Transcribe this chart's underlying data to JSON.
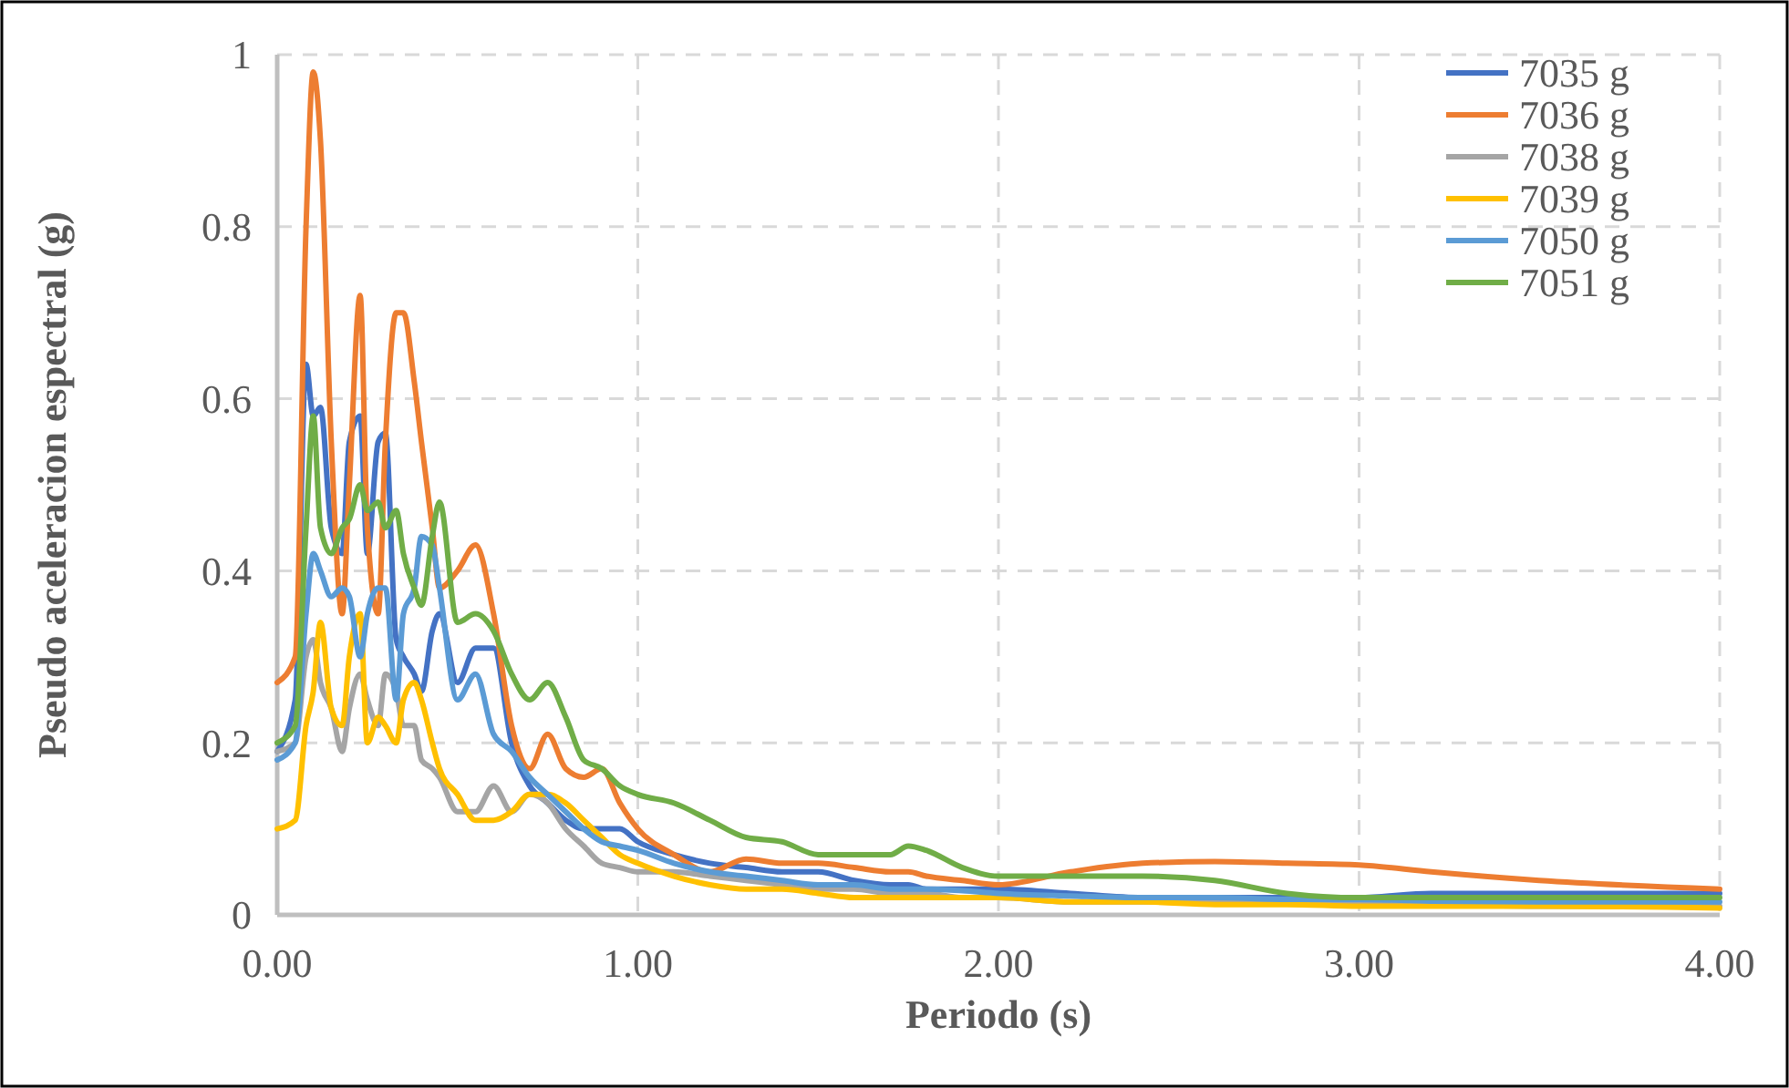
{
  "chart_data": {
    "type": "line",
    "xlabel": "Periodo (s)",
    "ylabel": "Pseudo aceleracion espectral (g)",
    "x": [
      0,
      0.05,
      0.08,
      0.1,
      0.12,
      0.15,
      0.18,
      0.2,
      0.23,
      0.25,
      0.28,
      0.3,
      0.33,
      0.35,
      0.38,
      0.4,
      0.43,
      0.45,
      0.5,
      0.55,
      0.6,
      0.65,
      0.7,
      0.75,
      0.8,
      0.85,
      0.9,
      0.95,
      1.0,
      1.1,
      1.2,
      1.3,
      1.4,
      1.5,
      1.6,
      1.7,
      1.75,
      1.8,
      1.9,
      2.0,
      2.2,
      2.4,
      2.6,
      2.8,
      3.0,
      3.2,
      3.5,
      4.0
    ],
    "series": [
      {
        "name": "7035 g",
        "color": "#4472c4",
        "values": [
          0.19,
          0.25,
          0.64,
          0.58,
          0.59,
          0.45,
          0.42,
          0.55,
          0.58,
          0.42,
          0.55,
          0.56,
          0.32,
          0.3,
          0.28,
          0.26,
          0.33,
          0.35,
          0.27,
          0.31,
          0.31,
          0.2,
          0.15,
          0.13,
          0.11,
          0.1,
          0.1,
          0.1,
          0.085,
          0.07,
          0.06,
          0.055,
          0.05,
          0.05,
          0.04,
          0.035,
          0.035,
          0.03,
          0.03,
          0.03,
          0.025,
          0.02,
          0.02,
          0.02,
          0.02,
          0.025,
          0.025,
          0.025
        ]
      },
      {
        "name": "7036 g",
        "color": "#ed7d31",
        "values": [
          0.27,
          0.3,
          0.8,
          0.98,
          0.9,
          0.55,
          0.35,
          0.5,
          0.72,
          0.45,
          0.35,
          0.55,
          0.7,
          0.7,
          0.62,
          0.55,
          0.45,
          0.38,
          0.4,
          0.43,
          0.35,
          0.22,
          0.17,
          0.21,
          0.17,
          0.16,
          0.17,
          0.13,
          0.1,
          0.07,
          0.05,
          0.065,
          0.06,
          0.06,
          0.055,
          0.05,
          0.05,
          0.045,
          0.04,
          0.035,
          0.05,
          0.06,
          0.062,
          0.06,
          0.058,
          0.05,
          0.04,
          0.03
        ]
      },
      {
        "name": "7038 g",
        "color": "#a5a5a5",
        "values": [
          0.19,
          0.2,
          0.3,
          0.32,
          0.27,
          0.24,
          0.19,
          0.24,
          0.28,
          0.25,
          0.22,
          0.28,
          0.26,
          0.22,
          0.22,
          0.18,
          0.17,
          0.16,
          0.12,
          0.12,
          0.15,
          0.12,
          0.14,
          0.13,
          0.1,
          0.08,
          0.06,
          0.055,
          0.05,
          0.05,
          0.045,
          0.04,
          0.035,
          0.03,
          0.03,
          0.025,
          0.025,
          0.025,
          0.02,
          0.02,
          0.015,
          0.015,
          0.015,
          0.015,
          0.012,
          0.012,
          0.01,
          0.01
        ]
      },
      {
        "name": "7039 g",
        "color": "#ffc000",
        "values": [
          0.1,
          0.11,
          0.22,
          0.26,
          0.34,
          0.24,
          0.22,
          0.3,
          0.35,
          0.2,
          0.23,
          0.22,
          0.2,
          0.25,
          0.27,
          0.25,
          0.2,
          0.17,
          0.14,
          0.11,
          0.11,
          0.12,
          0.14,
          0.14,
          0.13,
          0.11,
          0.09,
          0.07,
          0.06,
          0.045,
          0.035,
          0.03,
          0.03,
          0.025,
          0.02,
          0.02,
          0.02,
          0.02,
          0.02,
          0.02,
          0.015,
          0.015,
          0.012,
          0.012,
          0.01,
          0.01,
          0.01,
          0.008
        ]
      },
      {
        "name": "7050 g",
        "color": "#5b9bd5",
        "values": [
          0.18,
          0.2,
          0.35,
          0.42,
          0.4,
          0.37,
          0.38,
          0.37,
          0.3,
          0.35,
          0.38,
          0.38,
          0.25,
          0.35,
          0.38,
          0.44,
          0.43,
          0.38,
          0.25,
          0.28,
          0.21,
          0.19,
          0.16,
          0.14,
          0.12,
          0.1,
          0.085,
          0.08,
          0.075,
          0.06,
          0.05,
          0.045,
          0.04,
          0.035,
          0.035,
          0.03,
          0.03,
          0.03,
          0.028,
          0.025,
          0.022,
          0.02,
          0.02,
          0.018,
          0.018,
          0.016,
          0.015,
          0.015
        ]
      },
      {
        "name": "7051 g",
        "color": "#70ad47",
        "values": [
          0.2,
          0.22,
          0.45,
          0.58,
          0.45,
          0.42,
          0.45,
          0.46,
          0.5,
          0.47,
          0.48,
          0.45,
          0.47,
          0.42,
          0.38,
          0.36,
          0.44,
          0.48,
          0.34,
          0.35,
          0.33,
          0.28,
          0.25,
          0.27,
          0.23,
          0.18,
          0.17,
          0.15,
          0.14,
          0.13,
          0.11,
          0.09,
          0.085,
          0.07,
          0.07,
          0.07,
          0.08,
          0.075,
          0.055,
          0.045,
          0.045,
          0.045,
          0.04,
          0.025,
          0.02,
          0.02,
          0.02,
          0.02
        ]
      }
    ],
    "xlim": [
      0,
      4
    ],
    "xticks": [
      {
        "value": 0,
        "label": "0.00"
      },
      {
        "value": 1,
        "label": "1.00"
      },
      {
        "value": 2,
        "label": "2.00"
      },
      {
        "value": 3,
        "label": "3.00"
      },
      {
        "value": 4,
        "label": "4.00"
      }
    ],
    "ylim": [
      0,
      1
    ],
    "yticks": [
      0,
      0.2,
      0.4,
      0.6,
      0.8,
      1
    ],
    "grid": true,
    "legend": "top right",
    "line_style": "solid"
  }
}
